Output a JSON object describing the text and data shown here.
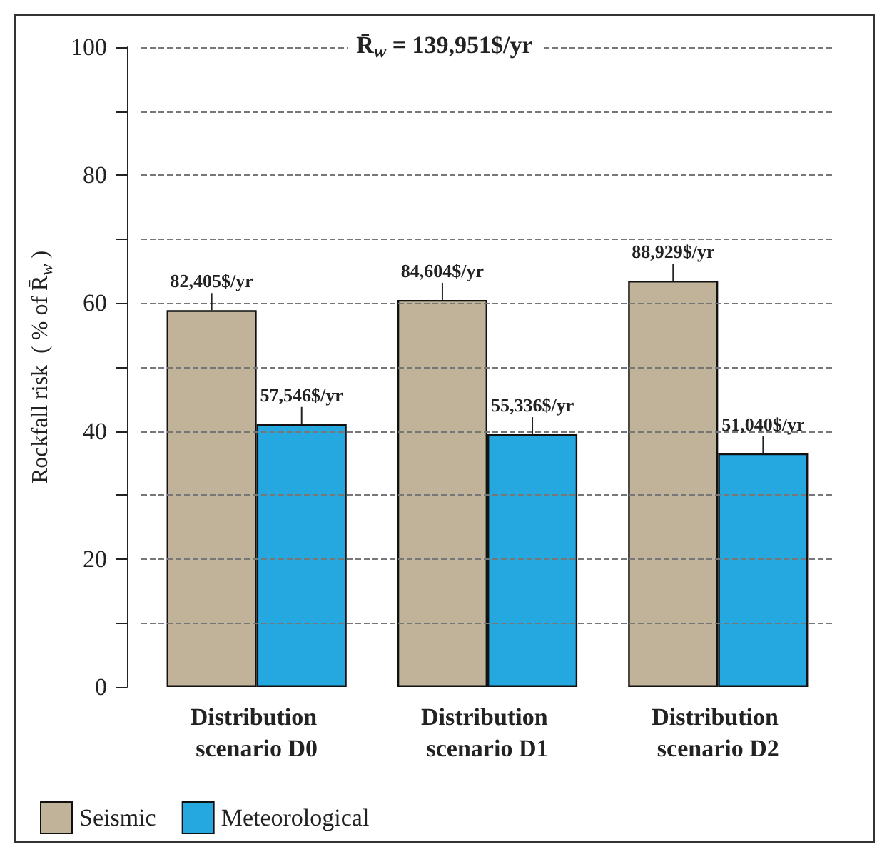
{
  "chart_data": {
    "type": "bar",
    "ylabel": "Rockfall risk  ( % of R̄$_{w}$ )",
    "annotations": [
      "R̄$_{w}$ = 139,951$/yr",
      {
        "text": "82,405$/yr",
        "x": "Distribution scenario D0",
        "y": 58.9
      },
      {
        "text": "84,604$/yr",
        "x": "Distribution scenario D1",
        "y": 60.5
      },
      {
        "text": "88,929$/yr",
        "x": "Distribution scenario D2",
        "y": 63.5
      },
      {
        "text": "57,546$/yr",
        "x": "Distribution scenario D0",
        "y": 41.1
      },
      {
        "text": "55,336$/yr",
        "x": "Distribution scenario D1",
        "y": 39.5
      },
      {
        "text": "51,040$/yr",
        "x": "Distribution scenario D2",
        "y": 36.5
      }
    ],
    "categories": [
      "Distribution scenario D0",
      "Distribution scenario D1",
      "Distribution scenario D2"
    ],
    "series": [
      {
        "name": "Seismic",
        "color": "#c0b399",
        "values": [
          58.9,
          60.5,
          63.5
        ]
      },
      {
        "name": "Meteorological",
        "color": "#25a8e0",
        "values": [
          41.1,
          39.5,
          36.5
        ]
      }
    ],
    "ylim": [
      0,
      100
    ],
    "yticks": [
      0,
      {
        "value": 10,
        "label": null
      },
      20,
      {
        "value": 30,
        "label": null
      },
      40,
      {
        "value": 50,
        "label": null
      },
      60,
      {
        "value": 70,
        "label": null
      },
      80,
      {
        "value": 90,
        "label": null
      },
      100
    ],
    "grid": "y",
    "legend": "bottom left"
  }
}
